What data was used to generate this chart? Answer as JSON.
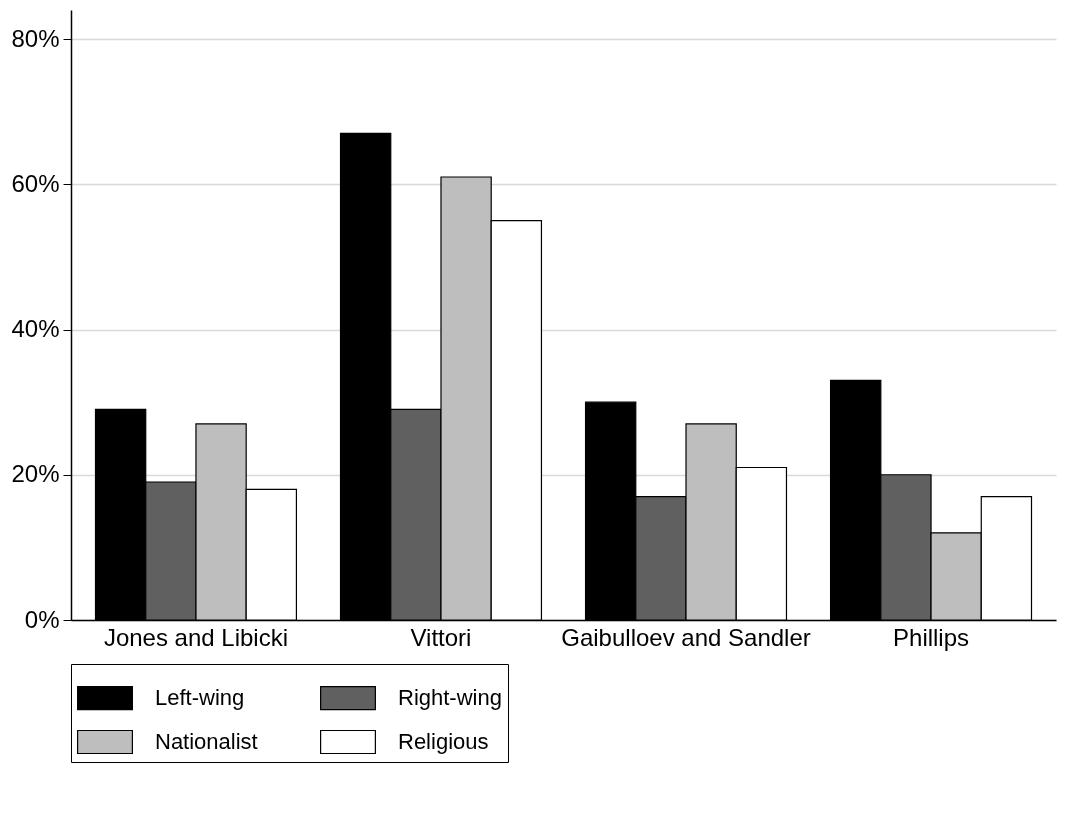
{
  "chart_data": {
    "type": "bar",
    "categories": [
      "Jones and Libicki",
      "Vittori",
      "Gaibulloev and Sandler",
      "Phillips"
    ],
    "series": [
      {
        "name": "Left-wing",
        "color": "#000000",
        "values": [
          29,
          67,
          30,
          33
        ]
      },
      {
        "name": "Right-wing",
        "color": "#606060",
        "values": [
          19,
          29,
          17,
          20
        ]
      },
      {
        "name": "Nationalist",
        "color": "#bebebe",
        "values": [
          27,
          61,
          27,
          12
        ]
      },
      {
        "name": "Religious",
        "color": "#ffffff",
        "values": [
          18,
          55,
          21,
          17
        ]
      }
    ],
    "ylim": [
      0,
      84
    ],
    "yticks": [
      {
        "value": 0,
        "label": "0%"
      },
      {
        "value": 20,
        "label": "20%"
      },
      {
        "value": 40,
        "label": "40%"
      },
      {
        "value": 60,
        "label": "60%"
      },
      {
        "value": 80,
        "label": "80%"
      }
    ],
    "grid": "y",
    "legend": "bottom"
  }
}
